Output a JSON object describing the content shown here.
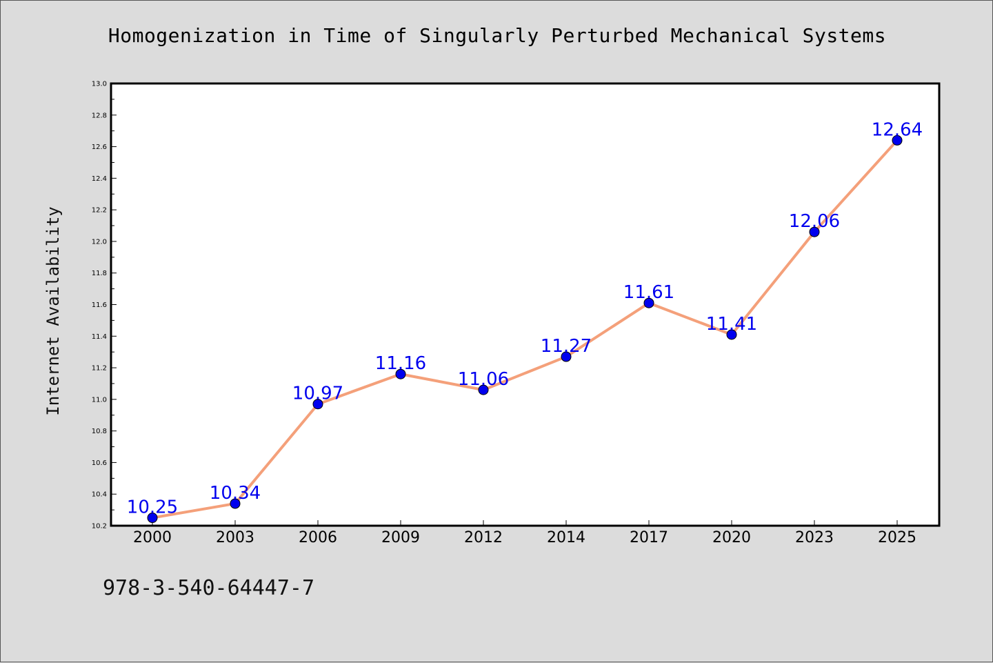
{
  "chart_data": {
    "type": "line",
    "title": "Homogenization in Time of Singularly Perturbed Mechanical Systems",
    "xlabel": "",
    "ylabel": "Internet Availability",
    "categories": [
      "2000",
      "2003",
      "2006",
      "2009",
      "2012",
      "2014",
      "2017",
      "2020",
      "2023",
      "2025"
    ],
    "series": [
      {
        "values": [
          10.25,
          10.34,
          10.97,
          11.16,
          11.06,
          11.27,
          11.61,
          11.41,
          12.06,
          12.64
        ]
      }
    ],
    "data_labels": [
      "10.25",
      "10.34",
      "10.97",
      "11.16",
      "11.06",
      "11.27",
      "11.61",
      "11.41",
      "12.06",
      "12.64"
    ],
    "ylim": [
      10.2,
      13.0
    ],
    "yticks": [
      "10.2",
      "10.4",
      "10.6",
      "10.8",
      "11.0",
      "11.2",
      "11.4",
      "11.6",
      "11.8",
      "12.0",
      "12.2",
      "12.4",
      "12.6",
      "12.8",
      "13.0"
    ],
    "grid": false,
    "legend": "none",
    "colors": {
      "line": "#f4a07a",
      "marker": "#0000ee",
      "label": "#0000ee",
      "background": "#dcdcdc",
      "plot_background": "#ffffff"
    }
  },
  "footer": {
    "text": "978-3-540-64447-7"
  }
}
